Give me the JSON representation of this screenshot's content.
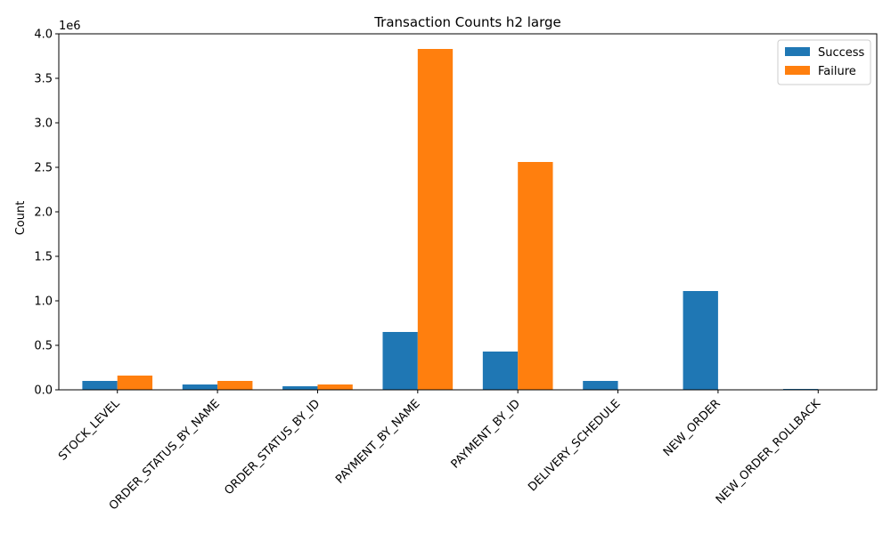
{
  "chart_data": {
    "type": "bar",
    "title": "Transaction Counts h2 large",
    "xlabel": "",
    "ylabel": "Count",
    "y_offset_label": "1e6",
    "categories": [
      "STOCK_LEVEL",
      "ORDER_STATUS_BY_NAME",
      "ORDER_STATUS_BY_ID",
      "PAYMENT_BY_NAME",
      "PAYMENT_BY_ID",
      "DELIVERY_SCHEDULE",
      "NEW_ORDER",
      "NEW_ORDER_ROLLBACK"
    ],
    "series": [
      {
        "name": "Success",
        "color": "#1f77b4",
        "values": [
          100000,
          60000,
          40000,
          650000,
          430000,
          100000,
          1110000,
          10000
        ]
      },
      {
        "name": "Failure",
        "color": "#ff7f0e",
        "values": [
          160000,
          100000,
          60000,
          3830000,
          2560000,
          0,
          0,
          0
        ]
      }
    ],
    "ylim": [
      0,
      4000000
    ],
    "y_ticks": [
      {
        "value": 0,
        "label": "0.0"
      },
      {
        "value": 500000,
        "label": "0.5"
      },
      {
        "value": 1000000,
        "label": "1.0"
      },
      {
        "value": 1500000,
        "label": "1.5"
      },
      {
        "value": 2000000,
        "label": "2.0"
      },
      {
        "value": 2500000,
        "label": "2.5"
      },
      {
        "value": 3000000,
        "label": "3.0"
      },
      {
        "value": 3500000,
        "label": "3.5"
      },
      {
        "value": 4000000,
        "label": "4.0"
      }
    ],
    "x_tick_rotation_deg": 45,
    "grid": false,
    "legend_position": "top-right"
  }
}
